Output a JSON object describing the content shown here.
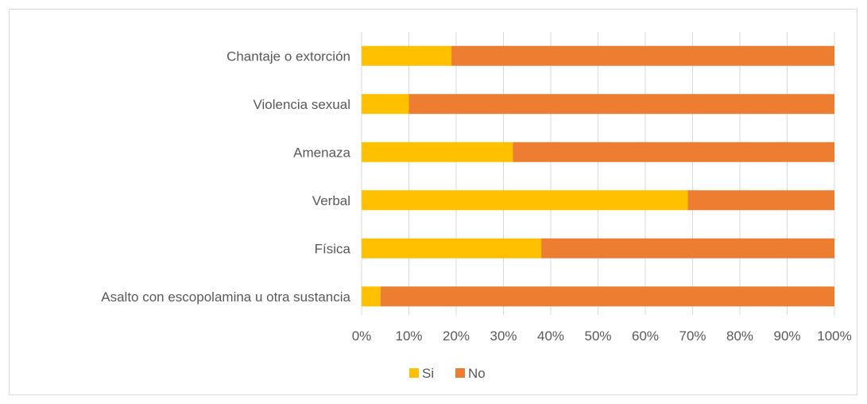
{
  "chart_data": {
    "type": "bar",
    "orientation": "horizontal",
    "stacked": "percent",
    "categories": [
      "Chantaje o extorción",
      "Violencia sexual",
      "Amenaza",
      "Verbal",
      "Física",
      "Asalto con escopolamina u otra sustancia"
    ],
    "series": [
      {
        "name": "Si",
        "color": "#FFC000",
        "values": [
          19,
          10,
          32,
          69,
          38,
          4
        ]
      },
      {
        "name": "No",
        "color": "#ED7D31",
        "values": [
          81,
          90,
          68,
          31,
          62,
          96
        ]
      }
    ],
    "x_ticks": [
      "0%",
      "10%",
      "20%",
      "30%",
      "40%",
      "50%",
      "60%",
      "70%",
      "80%",
      "90%",
      "100%"
    ],
    "xlim": [
      0,
      100
    ],
    "gridlines": "vertical",
    "legend": "bottom-center"
  }
}
